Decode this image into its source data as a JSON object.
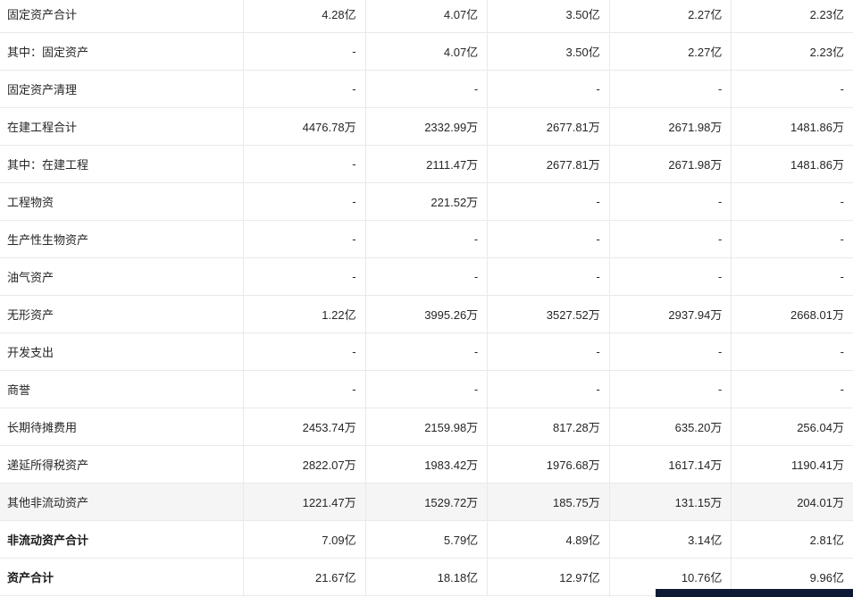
{
  "table": {
    "value_columns": 5,
    "rows": [
      {
        "label": "固定资产合计",
        "values": [
          "4.28亿",
          "4.07亿",
          "3.50亿",
          "2.27亿",
          "2.23亿"
        ]
      },
      {
        "label": "其中：固定资产",
        "values": [
          "-",
          "4.07亿",
          "3.50亿",
          "2.27亿",
          "2.23亿"
        ]
      },
      {
        "label": "固定资产清理",
        "values": [
          "-",
          "-",
          "-",
          "-",
          "-"
        ]
      },
      {
        "label": "在建工程合计",
        "values": [
          "4476.78万",
          "2332.99万",
          "2677.81万",
          "2671.98万",
          "1481.86万"
        ]
      },
      {
        "label": "其中：在建工程",
        "values": [
          "-",
          "2111.47万",
          "2677.81万",
          "2671.98万",
          "1481.86万"
        ]
      },
      {
        "label": "工程物资",
        "values": [
          "-",
          "221.52万",
          "-",
          "-",
          "-"
        ]
      },
      {
        "label": "生产性生物资产",
        "values": [
          "-",
          "-",
          "-",
          "-",
          "-"
        ]
      },
      {
        "label": "油气资产",
        "values": [
          "-",
          "-",
          "-",
          "-",
          "-"
        ]
      },
      {
        "label": "无形资产",
        "values": [
          "1.22亿",
          "3995.26万",
          "3527.52万",
          "2937.94万",
          "2668.01万"
        ]
      },
      {
        "label": "开发支出",
        "values": [
          "-",
          "-",
          "-",
          "-",
          "-"
        ]
      },
      {
        "label": "商誉",
        "values": [
          "-",
          "-",
          "-",
          "-",
          "-"
        ]
      },
      {
        "label": "长期待摊费用",
        "values": [
          "2453.74万",
          "2159.98万",
          "817.28万",
          "635.20万",
          "256.04万"
        ]
      },
      {
        "label": "递延所得税资产",
        "values": [
          "2822.07万",
          "1983.42万",
          "1976.68万",
          "1617.14万",
          "1190.41万"
        ]
      },
      {
        "label": "其他非流动资产",
        "values": [
          "1221.47万",
          "1529.72万",
          "185.75万",
          "131.15万",
          "204.01万"
        ],
        "highlighted": true
      },
      {
        "label": "非流动资产合计",
        "values": [
          "7.09亿",
          "5.79亿",
          "4.89亿",
          "3.14亿",
          "2.81亿"
        ],
        "bold": true
      },
      {
        "label": "资产合计",
        "values": [
          "21.67亿",
          "18.18亿",
          "12.97亿",
          "10.76亿",
          "9.96亿"
        ],
        "bold": true
      }
    ]
  },
  "colors": {
    "row_border": "#e9e9e9",
    "highlight_row_bg": "#f5f5f5",
    "bottom_bar": "#0c1a36",
    "text": "#262626"
  }
}
